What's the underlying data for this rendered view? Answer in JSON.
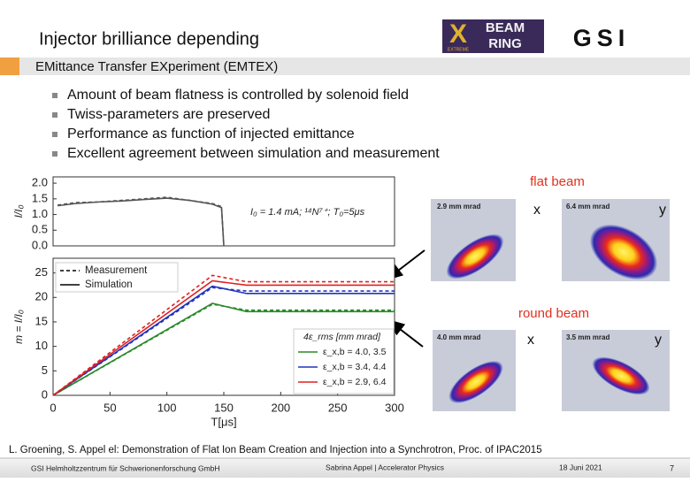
{
  "header": {
    "title": "Injector brilliance depending",
    "logo_beam_ring": {
      "letter": "X",
      "line1": "BEAM",
      "line2": "RING",
      "tag": "EXTREME"
    },
    "logo_gsi": "GSI"
  },
  "subtitle": "EMittance Transfer EXperiment (EMTEX)",
  "bullets": [
    "Amount of beam flatness is controlled by solenoid field",
    "Twiss-parameters are preserved",
    "Performance as function of injected emittance",
    "Excellent agreement between simulation and measurement"
  ],
  "chart_data": [
    {
      "type": "line",
      "ylabel": "I/I₀",
      "annotation": "I₀ = 1.4 mA; ¹⁴N⁷⁺; T₀=5μs",
      "xlim": [
        0,
        300
      ],
      "ylim": [
        0,
        2.2
      ],
      "yticks": [
        {
          "value": 0,
          "label": "0.0"
        },
        {
          "value": 0.5,
          "label": "0.5"
        },
        {
          "value": 1,
          "label": "1.0"
        },
        {
          "value": 1.5,
          "label": "1.5"
        },
        {
          "value": 2,
          "label": "2.0"
        }
      ],
      "x": [
        4,
        20,
        40,
        60,
        80,
        100,
        120,
        140,
        148,
        150
      ],
      "series": [
        {
          "color": "#555555",
          "dash": true,
          "values": [
            1.3,
            1.38,
            1.4,
            1.45,
            1.5,
            1.55,
            1.45,
            1.35,
            1.25,
            0
          ]
        },
        {
          "color": "#555555",
          "dash": false,
          "values": [
            1.28,
            1.35,
            1.4,
            1.43,
            1.48,
            1.52,
            1.45,
            1.33,
            1.22,
            0
          ]
        }
      ]
    },
    {
      "type": "line",
      "xlabel": "T[μs]",
      "ylabel": "m = I/I₀",
      "xlim": [
        0,
        300
      ],
      "ylim": [
        0,
        28
      ],
      "xticks": [
        0,
        50,
        100,
        150,
        200,
        250,
        300
      ],
      "yticks": [
        0,
        5,
        10,
        15,
        20,
        25
      ],
      "x": [
        0,
        140,
        170,
        300
      ],
      "series": [
        {
          "color": "#2a8a2a",
          "dash": true,
          "values": [
            0,
            18.6,
            17.4,
            17.4
          ]
        },
        {
          "color": "#2a8a2a",
          "dash": false,
          "values": [
            0,
            18.8,
            17.1,
            17.1
          ]
        },
        {
          "color": "#2233bb",
          "dash": true,
          "values": [
            0,
            22.0,
            21.3,
            21.3
          ]
        },
        {
          "color": "#2233bb",
          "dash": false,
          "values": [
            0,
            22.3,
            20.8,
            20.8
          ]
        },
        {
          "color": "#dd2222",
          "dash": true,
          "values": [
            0,
            24.5,
            23.2,
            23.2
          ]
        },
        {
          "color": "#dd2222",
          "dash": false,
          "values": [
            0,
            23.4,
            22.5,
            22.5
          ]
        }
      ],
      "legends": [
        {
          "entries": [
            {
              "name": "Measurement",
              "color": "#000000",
              "dash": true
            },
            {
              "name": "Simulation",
              "color": "#000000",
              "dash": false
            }
          ]
        },
        {
          "title": "4ε_rms [mm mrad]",
          "entries": [
            {
              "name": "ε_x,b = 4.0, 3.5",
              "color": "#2a8a2a"
            },
            {
              "name": "ε_x,b = 3.4, 4.4",
              "color": "#2233bb"
            },
            {
              "name": "ε_x,b = 2.9, 6.4",
              "color": "#dd2222"
            }
          ]
        }
      ]
    }
  ],
  "beam_images": {
    "flat_label": "flat beam",
    "round_label": "round beam",
    "panels": [
      {
        "label": "2.9 mm mrad",
        "axis": "x"
      },
      {
        "label": "6.4 mm mrad",
        "axis": "y"
      },
      {
        "label": "4.0 mm mrad",
        "axis": "x"
      },
      {
        "label": "3.5 mm mrad",
        "axis": "y"
      }
    ]
  },
  "reference": "L. Groening, S. Appel el: Demonstration of Flat Ion Beam Creation and Injection into a Synchrotron, Proc. of IPAC2015",
  "footer": {
    "institute": "GSI Helmholtzzentrum für Schwerionenforschung GmbH",
    "author": "Sabrina Appel | Accelerator Physics",
    "date": "18 Juni 2021",
    "page": "7"
  }
}
